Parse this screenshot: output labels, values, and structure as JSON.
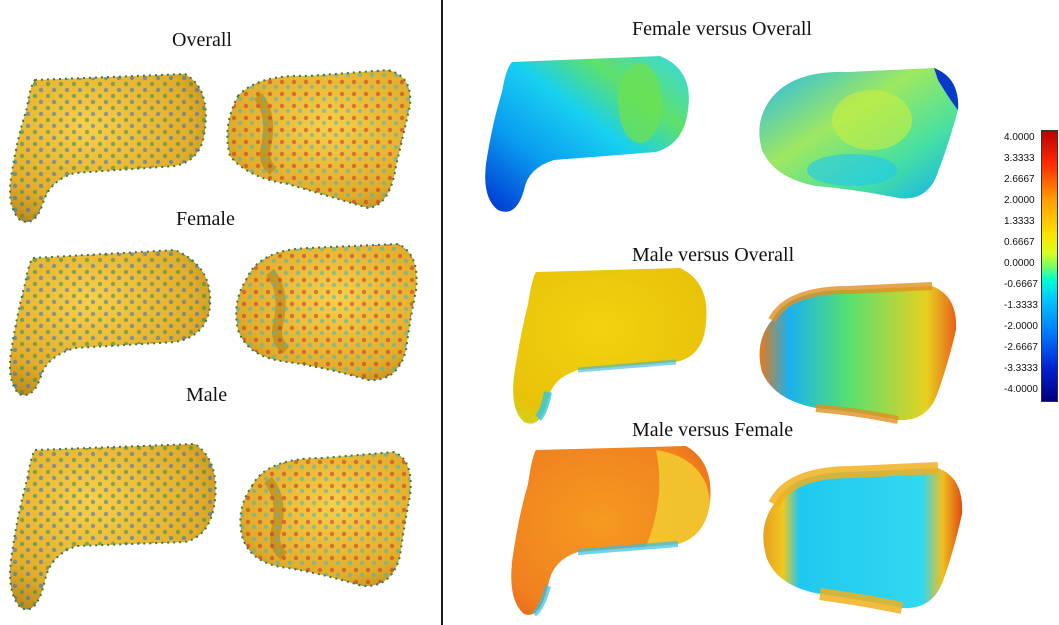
{
  "left_panel": {
    "titles": [
      "Overall",
      "Female",
      "Male"
    ]
  },
  "right_panel": {
    "titles": [
      "Female versus Overall",
      "Male versus Overall",
      "Male versus Female"
    ]
  },
  "colorbar": {
    "ticks": [
      "4.0000",
      "3.3333",
      "2.6667",
      "2.0000",
      "1.3333",
      "0.6667",
      "0.0000",
      "-0.6667",
      "-1.3333",
      "-2.0000",
      "-2.6667",
      "-3.3333",
      "-4.0000"
    ],
    "colors": [
      "#b80000",
      "#ff2a00",
      "#ff9a00",
      "#ffe000",
      "#7cff60",
      "#00ffd0",
      "#00c8ff",
      "#0078ff",
      "#00007e"
    ]
  },
  "colors": {
    "bone_base": "#e8b833",
    "landmark_dot_colors": [
      "#2b8a2b",
      "#1f5fd6",
      "#c23030",
      "#3fb8c8",
      "#7a3fa8"
    ]
  }
}
